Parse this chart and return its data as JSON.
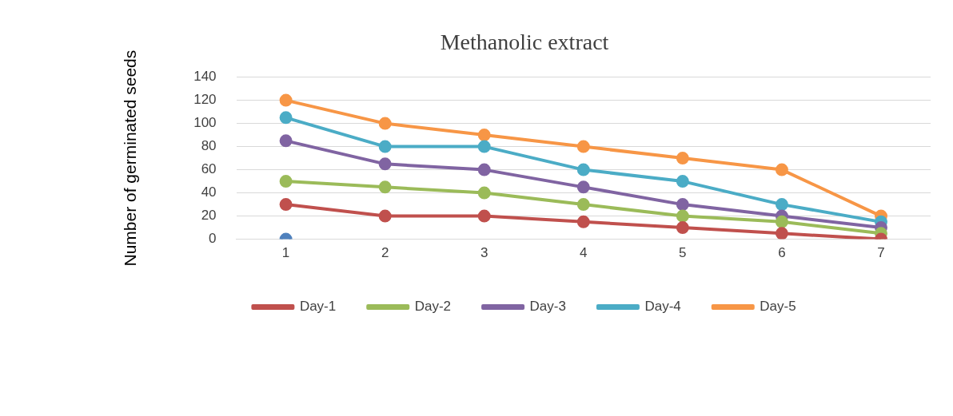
{
  "chart_data": {
    "type": "line",
    "title": "Methanolic extract",
    "ylabel": "Number of germinated seeds",
    "categories": [
      "1",
      "2",
      "3",
      "4",
      "5",
      "6",
      "7"
    ],
    "ylim": [
      0,
      140
    ],
    "yticks": [
      0,
      20,
      40,
      60,
      80,
      100,
      120,
      140
    ],
    "grid": "y",
    "legend": "bottom",
    "marker": "circle",
    "line_style": "solid",
    "series": [
      {
        "name": "Day-1",
        "color": "#c0504d",
        "values": [
          30,
          20,
          20,
          15,
          10,
          5,
          0
        ]
      },
      {
        "name": "Day-2",
        "color": "#9bbb59",
        "values": [
          50,
          45,
          40,
          30,
          20,
          15,
          5
        ]
      },
      {
        "name": "Day-3",
        "color": "#8064a2",
        "values": [
          85,
          65,
          60,
          45,
          30,
          20,
          10
        ]
      },
      {
        "name": "Day-4",
        "color": "#4bacc6",
        "values": [
          105,
          80,
          80,
          60,
          50,
          30,
          15
        ]
      },
      {
        "name": "Day-5",
        "color": "#f79646",
        "values": [
          120,
          100,
          90,
          80,
          70,
          60,
          20
        ]
      },
      {
        "type": "scatter",
        "color": "#4f81bd",
        "values": [
          0,
          null,
          null,
          null,
          null,
          null,
          null
        ]
      }
    ]
  }
}
